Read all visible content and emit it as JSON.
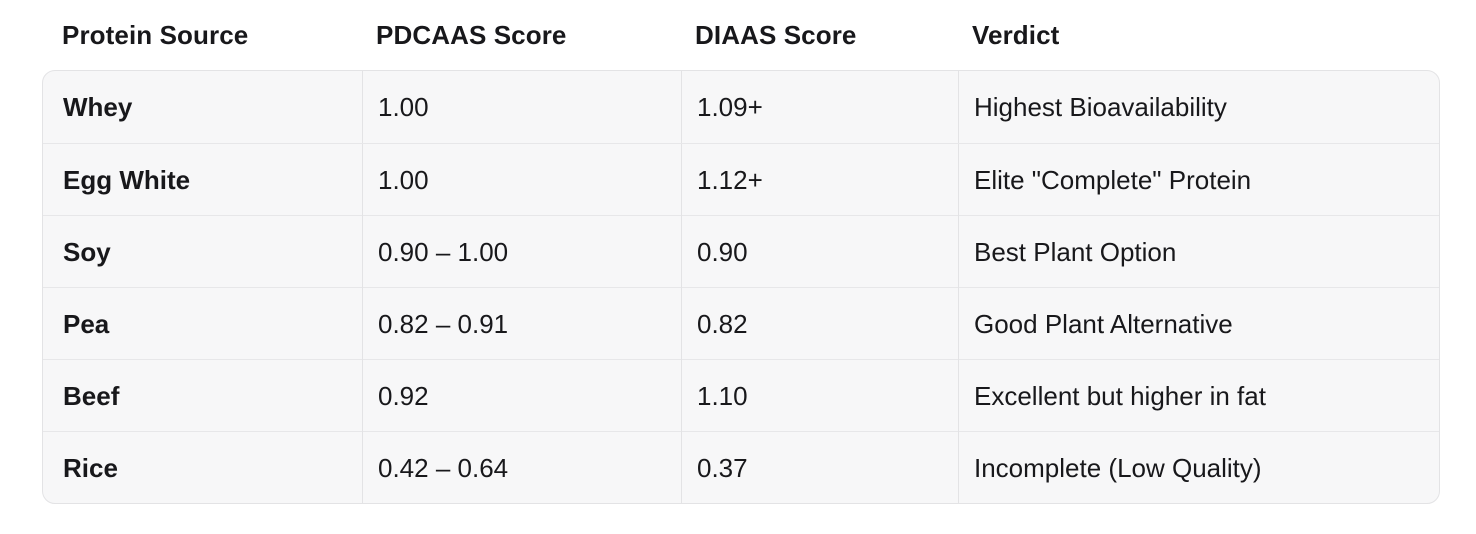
{
  "chart_data": {
    "type": "table",
    "columns": [
      "Protein Source",
      "PDCAAS Score",
      "DIAAS Score",
      "Verdict"
    ],
    "rows": [
      [
        "Whey",
        "1.00",
        "1.09+",
        "Highest Bioavailability"
      ],
      [
        "Egg White",
        "1.00",
        "1.12+",
        "Elite \"Complete\" Protein"
      ],
      [
        "Soy",
        "0.90 – 1.00",
        "0.90",
        "Best Plant Option"
      ],
      [
        "Pea",
        "0.82 – 0.91",
        "0.82",
        "Good Plant Alternative"
      ],
      [
        "Beef",
        "0.92",
        "1.10",
        "Excellent but higher in fat"
      ],
      [
        "Rice",
        "0.42 – 0.64",
        "0.37",
        "Incomplete (Low Quality)"
      ]
    ],
    "layout": {
      "header_outside_body": true,
      "bold_first_column": true,
      "grid_lines": "row and column dividers inside rounded body"
    },
    "colors": {
      "page_bg": "#ffffff",
      "body_bg": "#f7f7f8",
      "border": "#e3e3e5",
      "row_divider": "#e7e7e9",
      "text": "#18181b"
    }
  }
}
